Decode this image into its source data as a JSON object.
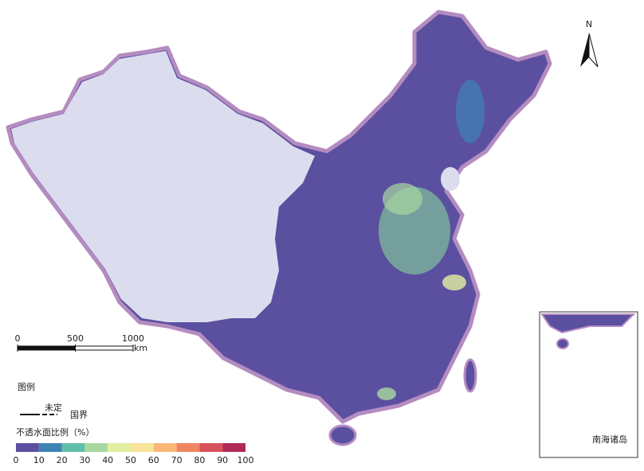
{
  "north": "N",
  "scale": {
    "ticks": [
      0,
      500,
      1000
    ],
    "unit": "km"
  },
  "legend": {
    "title": "图例",
    "border_note": "未定",
    "border_label": "国界",
    "ramp_title": "不透水面比例（%）",
    "ticks": [
      0,
      10,
      20,
      30,
      40,
      50,
      60,
      70,
      80,
      90,
      100
    ],
    "colors": [
      "#5b4fa0",
      "#3f83b5",
      "#5fbfa8",
      "#a8d8a0",
      "#e3efa0",
      "#f7e39a",
      "#f9b877",
      "#f08660",
      "#d9505a",
      "#b02a58"
    ]
  },
  "inset": {
    "label": "南海诸岛"
  }
}
